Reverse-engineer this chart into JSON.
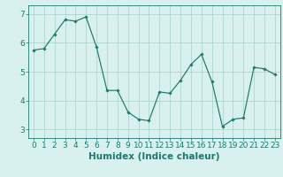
{
  "x": [
    0,
    1,
    2,
    3,
    4,
    5,
    6,
    7,
    8,
    9,
    10,
    11,
    12,
    13,
    14,
    15,
    16,
    17,
    18,
    19,
    20,
    21,
    22,
    23
  ],
  "y": [
    5.75,
    5.8,
    6.3,
    6.8,
    6.75,
    6.9,
    5.85,
    4.35,
    4.35,
    3.6,
    3.35,
    3.3,
    4.3,
    4.25,
    4.7,
    5.25,
    5.6,
    4.65,
    3.1,
    3.35,
    3.4,
    5.15,
    5.1,
    4.9
  ],
  "line_color": "#1a7a6e",
  "marker": "D",
  "marker_size": 1.8,
  "bg_color": "#d8f0ee",
  "grid_color": "#a8d0ca",
  "xlabel": "Humidex (Indice chaleur)",
  "ylim": [
    2.7,
    7.3
  ],
  "xlim": [
    -0.5,
    23.5
  ],
  "yticks": [
    3,
    4,
    5,
    6,
    7
  ],
  "xticks": [
    0,
    1,
    2,
    3,
    4,
    5,
    6,
    7,
    8,
    9,
    10,
    11,
    12,
    13,
    14,
    15,
    16,
    17,
    18,
    19,
    20,
    21,
    22,
    23
  ],
  "tick_color": "#1a7a6e",
  "label_color": "#1a7a6e",
  "font_size_label": 7.5,
  "font_size_tick": 6.5,
  "linewidth": 0.85
}
